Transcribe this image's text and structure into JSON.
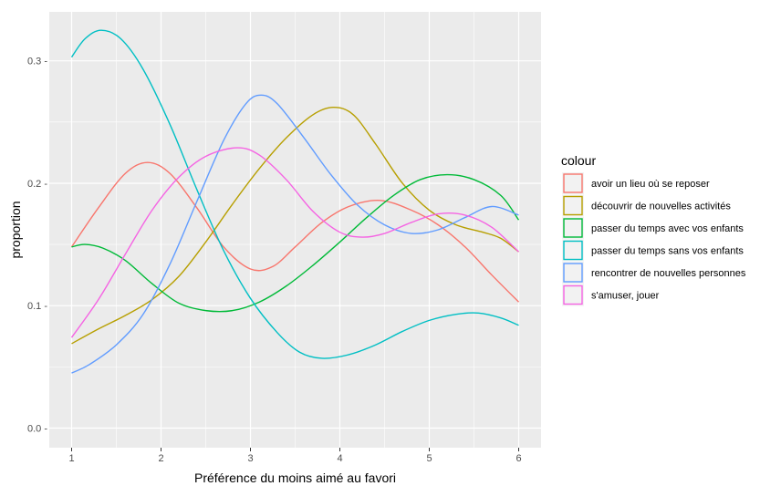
{
  "chart_data": {
    "type": "line",
    "xlabel": "Préférence du moins aimé au favori",
    "ylabel": "proportion",
    "x": [
      1,
      2,
      3,
      4,
      5,
      6
    ],
    "x_tick_labels": [
      "1",
      "2",
      "3",
      "4",
      "5",
      "6"
    ],
    "y_ticks": [
      0.0,
      0.1,
      0.2,
      0.3
    ],
    "y_tick_labels": [
      "0.0 -",
      "0.1 -",
      "0.2 -",
      "0.3 -"
    ],
    "xlim": [
      0.75,
      6.25
    ],
    "ylim": [
      -0.016,
      0.34
    ],
    "grid": true,
    "legend_position": "right",
    "legend_title": "colour",
    "series": [
      {
        "name": "avoir un lieu où se reposer",
        "color": "#F8766D",
        "points": [
          [
            1,
            0.148
          ],
          [
            1.3,
            0.18
          ],
          [
            1.6,
            0.208
          ],
          [
            1.85,
            0.217
          ],
          [
            2.1,
            0.208
          ],
          [
            2.4,
            0.18
          ],
          [
            2.7,
            0.148
          ],
          [
            3.0,
            0.13
          ],
          [
            3.25,
            0.132
          ],
          [
            3.5,
            0.148
          ],
          [
            3.8,
            0.168
          ],
          [
            4.1,
            0.181
          ],
          [
            4.45,
            0.186
          ],
          [
            4.8,
            0.178
          ],
          [
            5.1,
            0.166
          ],
          [
            5.4,
            0.148
          ],
          [
            5.7,
            0.125
          ],
          [
            6,
            0.103
          ]
        ]
      },
      {
        "name": "découvrir de nouvelles activités",
        "color": "#B79F00",
        "points": [
          [
            1,
            0.069
          ],
          [
            1.3,
            0.081
          ],
          [
            1.6,
            0.092
          ],
          [
            1.9,
            0.105
          ],
          [
            2.2,
            0.124
          ],
          [
            2.5,
            0.152
          ],
          [
            2.8,
            0.183
          ],
          [
            3.1,
            0.212
          ],
          [
            3.4,
            0.237
          ],
          [
            3.7,
            0.256
          ],
          [
            3.93,
            0.262
          ],
          [
            4.15,
            0.256
          ],
          [
            4.4,
            0.232
          ],
          [
            4.7,
            0.2
          ],
          [
            5.0,
            0.178
          ],
          [
            5.3,
            0.166
          ],
          [
            5.6,
            0.16
          ],
          [
            5.8,
            0.155
          ],
          [
            6,
            0.144
          ]
        ]
      },
      {
        "name": "passer du temps avec vos enfants",
        "color": "#00BA38",
        "points": [
          [
            1,
            0.148
          ],
          [
            1.15,
            0.15
          ],
          [
            1.35,
            0.147
          ],
          [
            1.6,
            0.137
          ],
          [
            1.9,
            0.118
          ],
          [
            2.2,
            0.102
          ],
          [
            2.5,
            0.096
          ],
          [
            2.8,
            0.096
          ],
          [
            3.1,
            0.103
          ],
          [
            3.4,
            0.116
          ],
          [
            3.7,
            0.133
          ],
          [
            4.0,
            0.152
          ],
          [
            4.3,
            0.172
          ],
          [
            4.6,
            0.19
          ],
          [
            4.9,
            0.203
          ],
          [
            5.2,
            0.207
          ],
          [
            5.5,
            0.203
          ],
          [
            5.8,
            0.19
          ],
          [
            6,
            0.17
          ]
        ]
      },
      {
        "name": "passer du temps sans vos enfants",
        "color": "#00BFC4",
        "points": [
          [
            1,
            0.303
          ],
          [
            1.15,
            0.318
          ],
          [
            1.33,
            0.325
          ],
          [
            1.55,
            0.318
          ],
          [
            1.8,
            0.293
          ],
          [
            2.1,
            0.248
          ],
          [
            2.4,
            0.195
          ],
          [
            2.7,
            0.145
          ],
          [
            3.0,
            0.106
          ],
          [
            3.3,
            0.078
          ],
          [
            3.55,
            0.062
          ],
          [
            3.8,
            0.057
          ],
          [
            4.1,
            0.06
          ],
          [
            4.4,
            0.068
          ],
          [
            4.7,
            0.079
          ],
          [
            5.0,
            0.088
          ],
          [
            5.3,
            0.093
          ],
          [
            5.55,
            0.094
          ],
          [
            5.8,
            0.09
          ],
          [
            6,
            0.084
          ]
        ]
      },
      {
        "name": "rencontrer de nouvelles personnes",
        "color": "#619CFF",
        "points": [
          [
            1,
            0.045
          ],
          [
            1.2,
            0.052
          ],
          [
            1.5,
            0.068
          ],
          [
            1.8,
            0.093
          ],
          [
            2.1,
            0.134
          ],
          [
            2.4,
            0.185
          ],
          [
            2.7,
            0.235
          ],
          [
            2.95,
            0.265
          ],
          [
            3.12,
            0.272
          ],
          [
            3.3,
            0.265
          ],
          [
            3.6,
            0.237
          ],
          [
            3.9,
            0.207
          ],
          [
            4.2,
            0.182
          ],
          [
            4.5,
            0.166
          ],
          [
            4.8,
            0.159
          ],
          [
            5.1,
            0.162
          ],
          [
            5.4,
            0.172
          ],
          [
            5.7,
            0.181
          ],
          [
            6,
            0.174
          ]
        ]
      },
      {
        "name": "s'amuser, jouer",
        "color": "#F564E3",
        "points": [
          [
            1,
            0.074
          ],
          [
            1.3,
            0.105
          ],
          [
            1.6,
            0.142
          ],
          [
            1.9,
            0.178
          ],
          [
            2.2,
            0.205
          ],
          [
            2.5,
            0.222
          ],
          [
            2.85,
            0.229
          ],
          [
            3.1,
            0.223
          ],
          [
            3.4,
            0.203
          ],
          [
            3.7,
            0.177
          ],
          [
            4.0,
            0.16
          ],
          [
            4.25,
            0.156
          ],
          [
            4.5,
            0.159
          ],
          [
            4.8,
            0.168
          ],
          [
            5.1,
            0.175
          ],
          [
            5.4,
            0.174
          ],
          [
            5.7,
            0.164
          ],
          [
            6,
            0.144
          ]
        ]
      }
    ]
  }
}
